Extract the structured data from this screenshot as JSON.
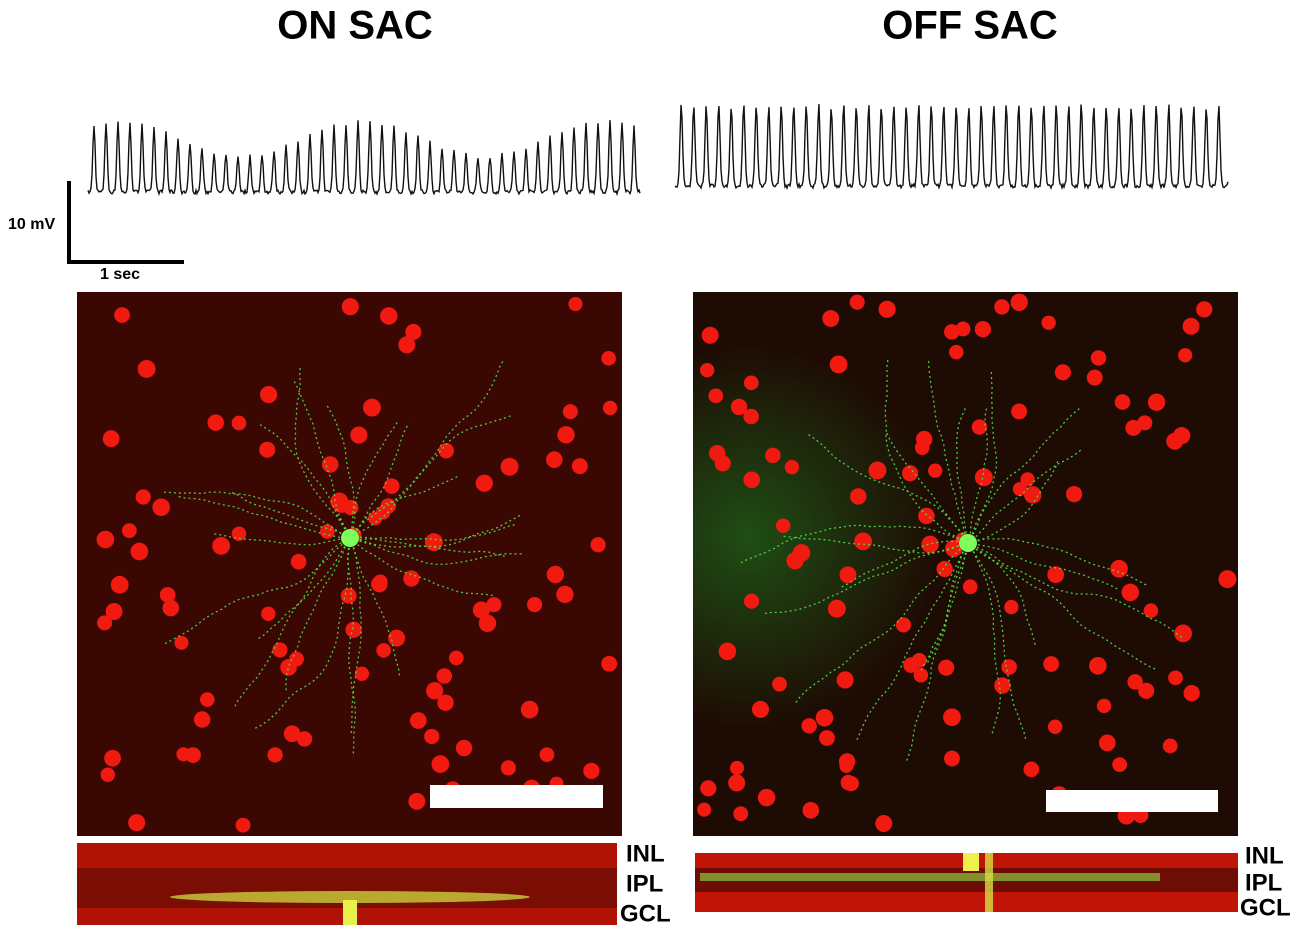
{
  "panels": [
    {
      "title": "ON SAC",
      "layers": [
        "INL",
        "IPL",
        "GCL"
      ]
    },
    {
      "title": "OFF SAC",
      "layers": [
        "INL",
        "IPL",
        "GCL"
      ]
    }
  ],
  "scale_bar": {
    "voltage": "10 mV",
    "time": "1 sec"
  }
}
